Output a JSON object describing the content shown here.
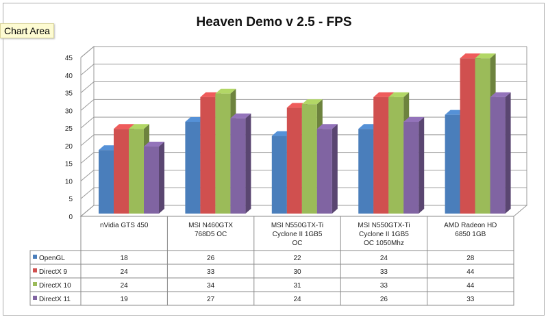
{
  "tooltip": "Chart Area",
  "chart_data": {
    "type": "bar",
    "title": "Heaven Demo v 2.5 - FPS",
    "xlabel": "",
    "ylabel": "",
    "ylim": [
      0,
      45
    ],
    "yticks": [
      0,
      5,
      10,
      15,
      20,
      25,
      30,
      35,
      40,
      45
    ],
    "grid": true,
    "legend": "data-table",
    "categories": [
      [
        "nVidia GTS 450"
      ],
      [
        "MSI N460GTX",
        "768D5 OC"
      ],
      [
        "MSI N550GTX-Ti",
        "Cyclone II 1GB5",
        "OC"
      ],
      [
        "MSI N550GTX-Ti",
        "Cyclone II 1GB5",
        "OC 1050Mhz"
      ],
      [
        "AMD Radeon HD",
        "6850 1GB"
      ]
    ],
    "series": [
      {
        "name": "OpenGL",
        "color": "#4a7ebb",
        "values": [
          18,
          26,
          22,
          24,
          28
        ]
      },
      {
        "name": "DirectX 9",
        "color": "#d0504f",
        "values": [
          24,
          33,
          30,
          33,
          44
        ]
      },
      {
        "name": "DirectX 10",
        "color": "#9bbb59",
        "values": [
          24,
          34,
          31,
          33,
          44
        ]
      },
      {
        "name": "DirectX 11",
        "color": "#8064a2",
        "values": [
          19,
          27,
          24,
          26,
          33
        ]
      }
    ]
  }
}
